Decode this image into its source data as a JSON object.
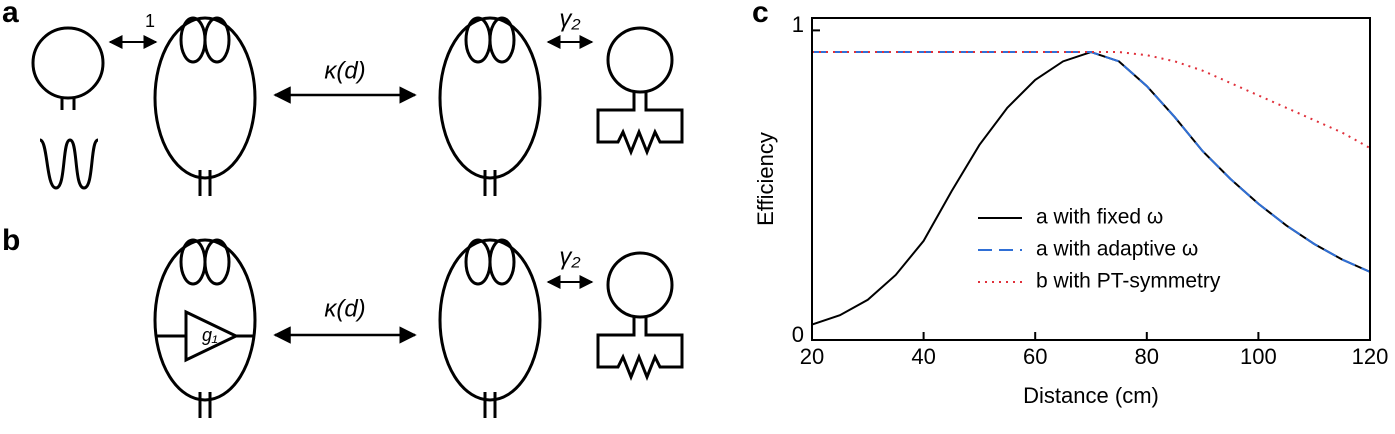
{
  "panels": {
    "a": "a",
    "b": "b",
    "c": "c"
  },
  "diagram": {
    "coupling_a": "1",
    "kappa_a": "κ(d)",
    "gamma_a": "γ₂",
    "kappa_b": "κ(d)",
    "gamma_b": "γ₂",
    "gain_b": "g₁"
  },
  "chart_data": {
    "type": "line",
    "xlabel": "Distance (cm)",
    "ylabel": "Efficiency",
    "x": [
      20,
      25,
      30,
      35,
      40,
      45,
      50,
      55,
      60,
      65,
      70,
      75,
      80,
      85,
      90,
      95,
      100,
      105,
      110,
      115,
      120
    ],
    "series": [
      {
        "name": "a with fixed ω",
        "color": "#000000",
        "dash": "none",
        "values": [
          0.05,
          0.08,
          0.13,
          0.21,
          0.32,
          0.48,
          0.63,
          0.75,
          0.84,
          0.9,
          0.93,
          0.9,
          0.82,
          0.72,
          0.61,
          0.52,
          0.44,
          0.37,
          0.31,
          0.26,
          0.22
        ]
      },
      {
        "name": "a with adaptive ω",
        "color": "#2f6fd6",
        "dash": "14 7",
        "values": [
          0.93,
          0.93,
          0.93,
          0.93,
          0.93,
          0.93,
          0.93,
          0.93,
          0.93,
          0.93,
          0.93,
          0.9,
          0.82,
          0.72,
          0.61,
          0.52,
          0.44,
          0.37,
          0.31,
          0.26,
          0.22
        ]
      },
      {
        "name": "b with PT-symmetry",
        "color": "#e0303a",
        "dash": "2 5",
        "values": [
          0.93,
          0.93,
          0.93,
          0.93,
          0.93,
          0.93,
          0.93,
          0.93,
          0.93,
          0.93,
          0.93,
          0.93,
          0.92,
          0.9,
          0.87,
          0.83,
          0.79,
          0.75,
          0.71,
          0.67,
          0.62
        ]
      }
    ],
    "xlim": [
      20,
      120
    ],
    "ylim": [
      0,
      1.04
    ],
    "xticks": [
      20,
      40,
      60,
      80,
      100,
      120
    ],
    "yticks": [
      0,
      1
    ]
  }
}
